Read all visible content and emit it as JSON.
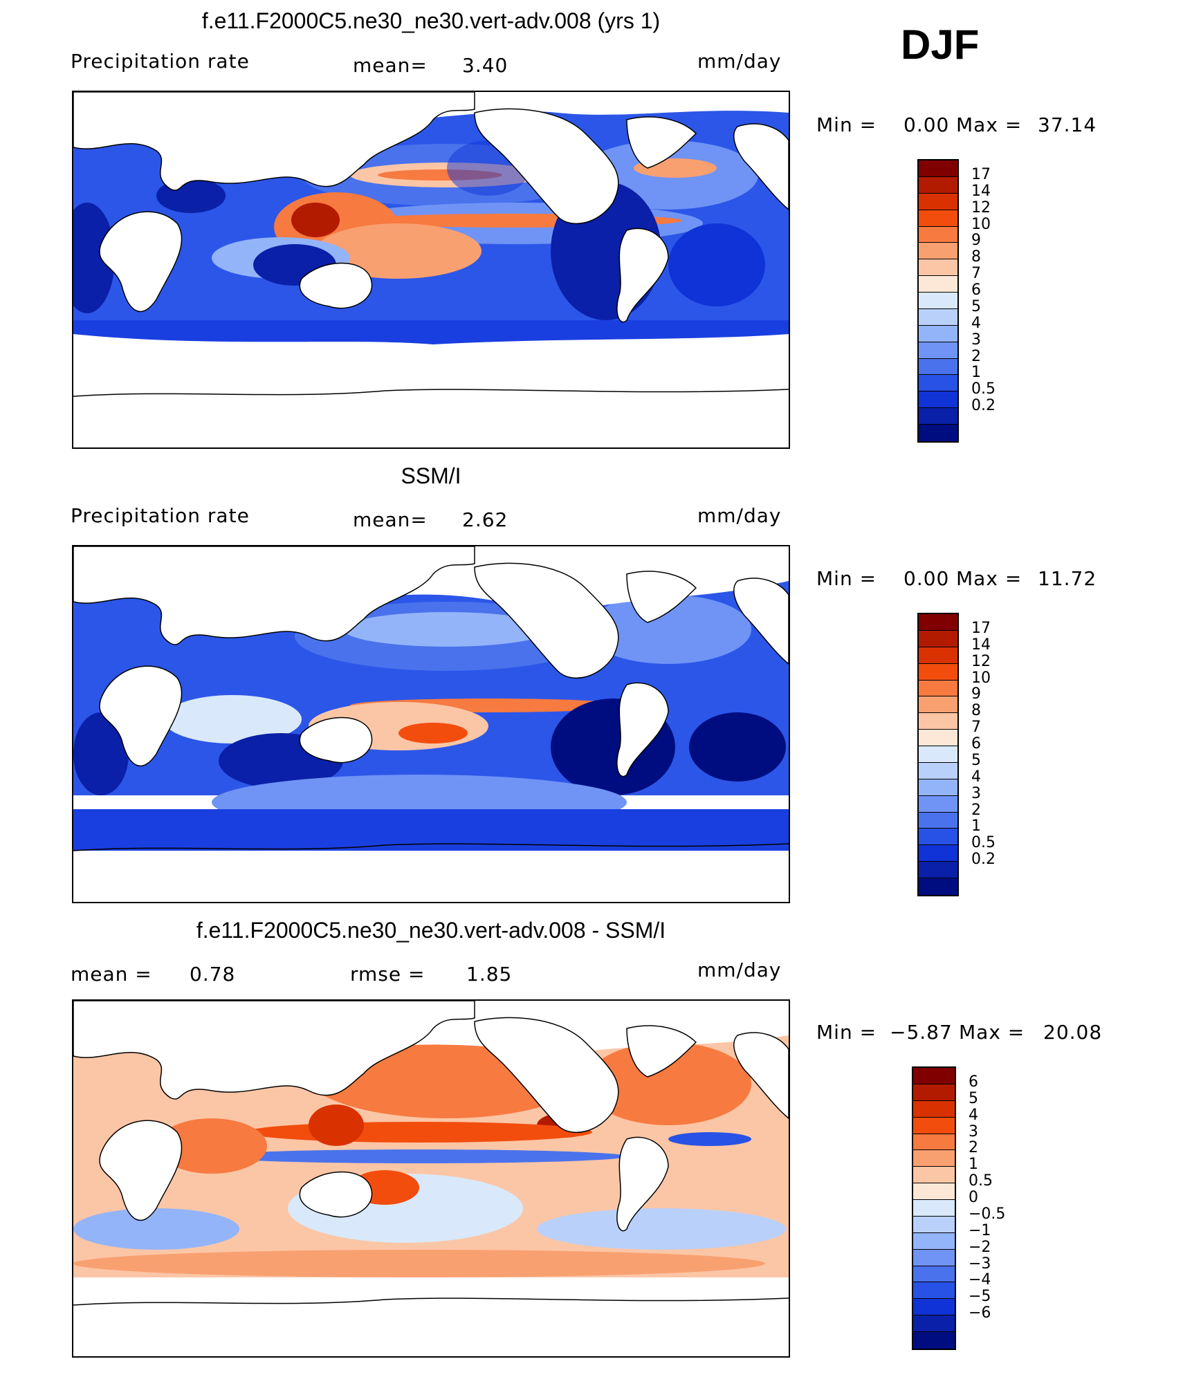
{
  "season": "DJF",
  "colors": {
    "positive_scale": [
      "#800000",
      "#b31b00",
      "#d93200",
      "#f24d0d",
      "#f77a40",
      "#f9a071",
      "#fbc6a6",
      "#fde7d6",
      "#d9e9fb",
      "#b9d0fb",
      "#94b4fa",
      "#6f94f5",
      "#4a72ec",
      "#2851e6",
      "#0f33d6",
      "#0a20a8",
      "#000d80"
    ],
    "diff_scale": [
      "#800000",
      "#b31b00",
      "#d93200",
      "#f24d0d",
      "#f77a40",
      "#f9a071",
      "#fbc6a6",
      "#fde7d6",
      "#d9e9fb",
      "#b9d0fb",
      "#94b4fa",
      "#6f94f5",
      "#4a72ec",
      "#2851e6",
      "#0f33d6",
      "#0a20a8",
      "#000d80"
    ]
  },
  "panels": [
    {
      "title": "f.e11.F2000C5.ne30_ne30.vert-adv.008 (yrs 1)",
      "left_label": "Precipitation rate",
      "mid_label": "mean=",
      "mid_value": "3.40",
      "units": "mm/day",
      "min_label": "Min =",
      "min_value": "0.00",
      "max_label": "Max =",
      "max_value": "37.14",
      "ticks": [
        "17",
        "14",
        "12",
        "10",
        "9",
        "8",
        "7",
        "6",
        "5",
        "4",
        "3",
        "2",
        "1",
        "0.5",
        "0.2"
      ]
    },
    {
      "title": "SSM/I",
      "left_label": "Precipitation rate",
      "mid_label": "mean=",
      "mid_value": "2.62",
      "units": "mm/day",
      "min_label": "Min =",
      "min_value": "0.00",
      "max_label": "Max =",
      "max_value": "11.72",
      "ticks": [
        "17",
        "14",
        "12",
        "10",
        "9",
        "8",
        "7",
        "6",
        "5",
        "4",
        "3",
        "2",
        "1",
        "0.5",
        "0.2"
      ]
    },
    {
      "title": "f.e11.F2000C5.ne30_ne30.vert-adv.008 - SSM/I",
      "left_label": "mean =",
      "left_value": "0.78",
      "mid_label": "rmse =",
      "mid_value": "1.85",
      "units": "mm/day",
      "min_label": "Min =",
      "min_value": "−5.87",
      "max_label": "Max =",
      "max_value": "20.08",
      "ticks": [
        "6",
        "5",
        "4",
        "3",
        "2",
        "1",
        "0.5",
        "0",
        "−0.5",
        "−1",
        "−2",
        "−3",
        "−4",
        "−5",
        "−6"
      ]
    }
  ]
}
